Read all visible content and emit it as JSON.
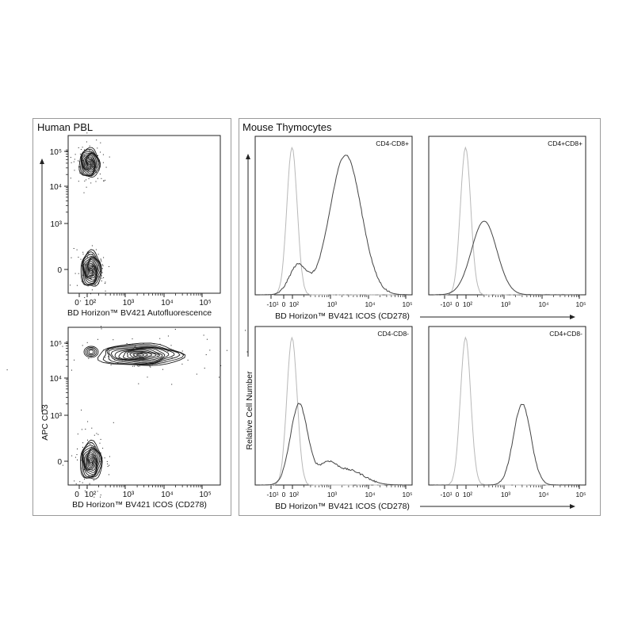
{
  "panels": {
    "left_title": "Human PBL",
    "right_title": "Mouse Thymocytes"
  },
  "colors": {
    "contour": "#1a1a1a",
    "histogram_solid": "#444444",
    "histogram_control": "#b8b8b8",
    "axis": "#222222",
    "panel_border": "#9a9a9a"
  },
  "chart_data": [
    {
      "id": "pbl-autofluorescence",
      "type": "scatter",
      "subtype": "contour-density",
      "xlabel": "BD Horizon™ BV421 Autofluorescence",
      "ylabel": "APC CD3",
      "x_scale": "biexponential",
      "y_scale": "biexponential",
      "x_ticks": [
        "0",
        "10²",
        "10³",
        "10⁴",
        "10⁵"
      ],
      "y_ticks": [
        "0",
        "10³",
        "10⁴",
        "10⁵"
      ],
      "populations": [
        {
          "x": 60,
          "y": 40000,
          "spread_x": 0.5,
          "spread_y": 0.6
        },
        {
          "x": 60,
          "y": 0,
          "spread_x": 0.5,
          "spread_y": 0.9
        }
      ]
    },
    {
      "id": "pbl-icos",
      "type": "scatter",
      "subtype": "contour-density",
      "xlabel": "BD Horizon™ BV421 ICOS (CD278)",
      "ylabel": "APC CD3",
      "x_scale": "biexponential",
      "y_scale": "biexponential",
      "x_ticks": [
        "0",
        "10²",
        "10³",
        "10⁴",
        "10⁵"
      ],
      "y_ticks": [
        "0",
        "10³",
        "10⁴",
        "10⁵"
      ],
      "populations": [
        {
          "x": 2000,
          "y": 40000,
          "spread_x": 1.6,
          "spread_y": 0.7
        },
        {
          "x": 60,
          "y": 0,
          "spread_x": 0.6,
          "spread_y": 1.0
        }
      ]
    },
    {
      "id": "thymo-cd4neg-cd8pos",
      "type": "area",
      "subtype": "histogram",
      "label": "CD4-CD8+",
      "xlabel": "BD Horizon™ BV421 ICOS (CD278)",
      "ylabel": "Relative Cell Number",
      "x_ticks": [
        "-10¹",
        "0",
        "10²",
        "10³",
        "10⁴",
        "10⁵"
      ],
      "control_peak": 80,
      "stained_peaks": [
        {
          "x": 140,
          "rel_height": 0.2
        },
        {
          "x": 2500,
          "rel_height": 0.95
        }
      ]
    },
    {
      "id": "thymo-cd4pos-cd8pos",
      "type": "area",
      "subtype": "histogram",
      "label": "CD4+CD8+",
      "xlabel": "BD Horizon™ BV421 ICOS (CD278)",
      "ylabel": "Relative Cell Number",
      "x_ticks": [
        "-10¹",
        "0",
        "10²",
        "10³",
        "10⁴",
        "10⁵"
      ],
      "control_peak": 80,
      "stained_peaks": [
        {
          "x": 300,
          "rel_height": 0.5
        }
      ]
    },
    {
      "id": "thymo-cd4neg-cd8neg",
      "type": "area",
      "subtype": "histogram",
      "label": "CD4-CD8-",
      "xlabel": "BD Horizon™ BV421 ICOS (CD278)",
      "ylabel": "Relative Cell Number",
      "x_ticks": [
        "-10¹",
        "0",
        "10²",
        "10³",
        "10⁴",
        "10⁵"
      ],
      "control_peak": 80,
      "stained_peaks": [
        {
          "x": 150,
          "rel_height": 0.55
        },
        {
          "x": 800,
          "rel_height": 0.12
        },
        {
          "x": 3000,
          "rel_height": 0.1
        }
      ]
    },
    {
      "id": "thymo-cd4pos-cd8neg",
      "type": "area",
      "subtype": "histogram",
      "label": "CD4+CD8-",
      "xlabel": "BD Horizon™ BV421 ICOS (CD278)",
      "ylabel": "Relative Cell Number",
      "x_ticks": [
        "-10¹",
        "0",
        "10²",
        "10³",
        "10⁴",
        "10⁵"
      ],
      "control_peak": 80,
      "stained_peaks": [
        {
          "x": 3000,
          "rel_height": 0.55
        }
      ]
    }
  ]
}
